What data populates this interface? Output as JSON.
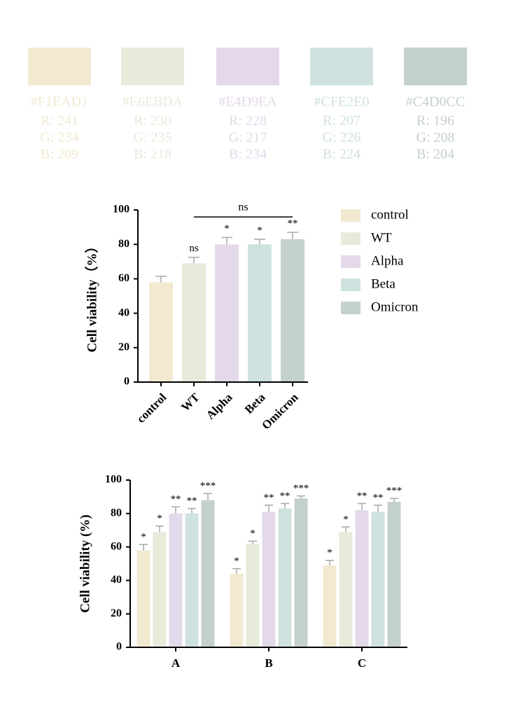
{
  "palette": [
    {
      "hex": "#F1EAD1",
      "r": "R: 241",
      "g": "G: 234",
      "b": "B: 209"
    },
    {
      "hex": "#E6EBDA",
      "r": "R: 230",
      "g": "G: 235",
      "b": "B: 218"
    },
    {
      "hex": "#E4D9EA",
      "r": "R: 228",
      "g": "G: 217",
      "b": "B: 234"
    },
    {
      "hex": "#CFE2E0",
      "r": "R: 207",
      "g": "G: 226",
      "b": "B: 224"
    },
    {
      "hex": "#C4D0CC",
      "r": "R: 196",
      "g": "G: 208",
      "b": "B: 204"
    }
  ],
  "chart_data": [
    {
      "type": "bar",
      "ylabel": "Cell viability（%）",
      "categories": [
        "control",
        "WT",
        "Alpha",
        "Beta",
        "Omicron"
      ],
      "values": [
        58,
        69,
        80,
        80,
        83
      ],
      "errors": [
        3.5,
        3.5,
        4,
        3,
        4
      ],
      "annotations": [
        null,
        "ns",
        "*",
        "*",
        "**"
      ],
      "colors": [
        "#F1EAD1",
        "#E6EBDA",
        "#E4D9EA",
        "#CFE2E0",
        "#C4D0CC"
      ],
      "bracket": {
        "categories": [
          "WT",
          "Omicron"
        ],
        "label": "ns"
      },
      "ylim": [
        0,
        100
      ],
      "yticks": [
        0,
        20,
        40,
        60,
        80,
        100
      ],
      "legend": "right"
    },
    {
      "type": "grouped_bar",
      "ylabel": "Cell viability (%)",
      "categories": [
        "A",
        "B",
        "C"
      ],
      "series": [
        {
          "color": "#F1EAD1",
          "values": [
            58,
            44,
            49
          ],
          "errors": [
            3.5,
            3,
            3
          ],
          "annotations": [
            "*",
            "*",
            "*"
          ]
        },
        {
          "color": "#E6EBDA",
          "values": [
            69,
            62,
            69
          ],
          "errors": [
            3.5,
            1.5,
            3
          ],
          "annotations": [
            "*",
            "*",
            "*"
          ]
        },
        {
          "color": "#E4D9EA",
          "values": [
            80,
            81,
            82
          ],
          "errors": [
            4,
            4,
            4
          ],
          "annotations": [
            "**",
            "**",
            "**"
          ]
        },
        {
          "color": "#CFE2E0",
          "values": [
            80,
            83,
            81
          ],
          "errors": [
            3,
            3,
            4
          ],
          "annotations": [
            "**",
            "**",
            "**"
          ]
        },
        {
          "color": "#C4D0CC",
          "values": [
            88,
            89,
            87
          ],
          "errors": [
            4,
            1.5,
            2
          ],
          "annotations": [
            "***",
            "***",
            "***"
          ]
        }
      ],
      "ylim": [
        0,
        100
      ],
      "yticks": [
        0,
        20,
        40,
        60,
        80,
        100
      ]
    }
  ]
}
